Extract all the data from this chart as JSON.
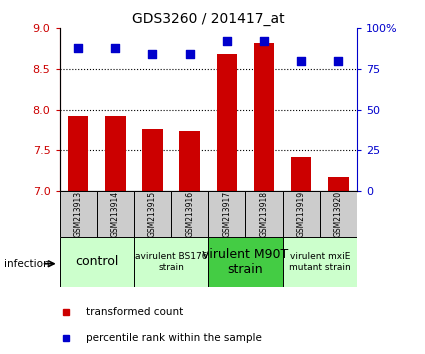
{
  "title": "GDS3260 / 201417_at",
  "samples": [
    "GSM213913",
    "GSM213914",
    "GSM213915",
    "GSM213916",
    "GSM213917",
    "GSM213918",
    "GSM213919",
    "GSM213920"
  ],
  "transformed_counts": [
    7.92,
    7.92,
    7.76,
    7.74,
    8.68,
    8.82,
    7.42,
    7.18
  ],
  "percentile_ranks": [
    88,
    88,
    84,
    84,
    92,
    92,
    80,
    80
  ],
  "ylim_left": [
    7,
    9
  ],
  "ylim_right": [
    0,
    100
  ],
  "yticks_left": [
    7,
    7.5,
    8,
    8.5,
    9
  ],
  "yticks_right": [
    0,
    25,
    50,
    75,
    100
  ],
  "ytick_labels_right": [
    "0",
    "25",
    "50",
    "75",
    "100%"
  ],
  "bar_color": "#cc0000",
  "dot_color": "#0000cc",
  "groups": [
    {
      "label": "control",
      "samples": [
        0,
        1
      ],
      "color": "#ccffcc",
      "fontsize": 9
    },
    {
      "label": "avirulent BS176\nstrain",
      "samples": [
        2,
        3
      ],
      "color": "#ccffcc",
      "fontsize": 6.5
    },
    {
      "label": "virulent M90T\nstrain",
      "samples": [
        4,
        5
      ],
      "color": "#44cc44",
      "fontsize": 9
    },
    {
      "label": "virulent mxiE\nmutant strain",
      "samples": [
        6,
        7
      ],
      "color": "#ccffcc",
      "fontsize": 6.5
    }
  ],
  "infection_label": "infection",
  "legend_items": [
    {
      "color": "#cc0000",
      "label": "transformed count"
    },
    {
      "color": "#0000cc",
      "label": "percentile rank within the sample"
    }
  ],
  "bar_width": 0.55,
  "dot_size": 40,
  "background_color": "#ffffff",
  "sample_area_color": "#cccccc",
  "hline_ticks": [
    7.5,
    8,
    8.5
  ]
}
